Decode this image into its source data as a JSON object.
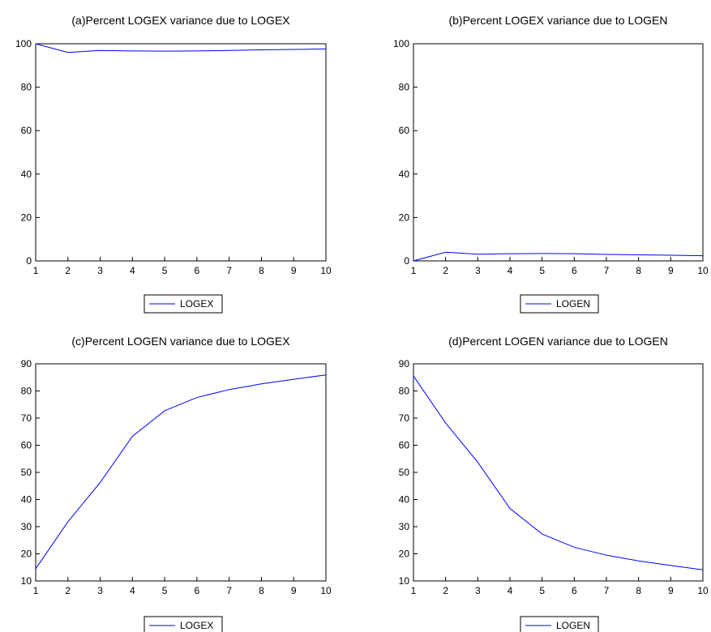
{
  "chart_data": [
    {
      "type": "line",
      "title": "(a)Percent LOGEX variance due to LOGEX",
      "x": [
        1,
        2,
        3,
        4,
        5,
        6,
        7,
        8,
        9,
        10
      ],
      "series": [
        {
          "name": "LOGEX",
          "values": [
            100,
            96.0,
            96.9,
            96.7,
            96.6,
            96.7,
            96.9,
            97.2,
            97.4,
            97.6
          ]
        }
      ],
      "ylim": [
        0,
        100
      ],
      "yticks": [
        0,
        20,
        40,
        60,
        80,
        100
      ],
      "xticks": [
        1,
        2,
        3,
        4,
        5,
        6,
        7,
        8,
        9,
        10
      ],
      "legend": "bottom-center",
      "grid": false,
      "color": "#0000ff"
    },
    {
      "type": "line",
      "title": "(b)Percent LOGEX variance due to LOGEN",
      "x": [
        1,
        2,
        3,
        4,
        5,
        6,
        7,
        8,
        9,
        10
      ],
      "series": [
        {
          "name": "LOGEN",
          "values": [
            0,
            4.0,
            3.1,
            3.3,
            3.4,
            3.3,
            3.0,
            2.8,
            2.6,
            2.4
          ]
        }
      ],
      "ylim": [
        0,
        100
      ],
      "yticks": [
        0,
        20,
        40,
        60,
        80,
        100
      ],
      "xticks": [
        1,
        2,
        3,
        4,
        5,
        6,
        7,
        8,
        9,
        10
      ],
      "legend": "bottom-center",
      "grid": false,
      "color": "#0000ff"
    },
    {
      "type": "line",
      "title": "(c)Percent LOGEN variance due to LOGEX",
      "x": [
        1,
        2,
        3,
        4,
        5,
        6,
        7,
        8,
        9,
        10
      ],
      "series": [
        {
          "name": "LOGEX",
          "values": [
            14.5,
            31.8,
            46.3,
            63.3,
            72.7,
            77.6,
            80.5,
            82.6,
            84.3,
            85.9
          ]
        }
      ],
      "ylim": [
        10,
        90
      ],
      "yticks": [
        10,
        20,
        30,
        40,
        50,
        60,
        70,
        80,
        90
      ],
      "xticks": [
        1,
        2,
        3,
        4,
        5,
        6,
        7,
        8,
        9,
        10
      ],
      "legend": "bottom-center",
      "grid": false,
      "color": "#0000ff"
    },
    {
      "type": "line",
      "title": "(d)Percent LOGEN variance due to LOGEN",
      "x": [
        1,
        2,
        3,
        4,
        5,
        6,
        7,
        8,
        9,
        10
      ],
      "series": [
        {
          "name": "LOGEN",
          "values": [
            85.5,
            68.2,
            53.7,
            36.7,
            27.3,
            22.4,
            19.5,
            17.4,
            15.7,
            14.1
          ]
        }
      ],
      "ylim": [
        10,
        90
      ],
      "yticks": [
        10,
        20,
        30,
        40,
        50,
        60,
        70,
        80,
        90
      ],
      "xticks": [
        1,
        2,
        3,
        4,
        5,
        6,
        7,
        8,
        9,
        10
      ],
      "legend": "bottom-center",
      "grid": false,
      "color": "#0000ff"
    }
  ]
}
